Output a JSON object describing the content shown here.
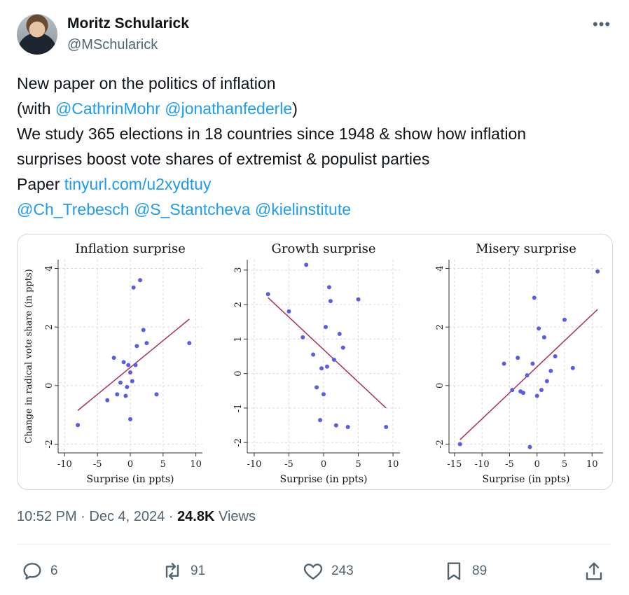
{
  "author": {
    "name": "Moritz Schularick",
    "handle": "@MSchularick"
  },
  "more_label": "•••",
  "tweet": {
    "line1": "New paper on the politics of inflation",
    "line2_pre": "(with ",
    "mention1": "@CathrinMohr",
    "mention2": "@jonathanfederle",
    "line2_post": ")",
    "line3": "We study 365 elections in 18 countries since 1948 & show how inflation",
    "line4": "surprises boost vote shares of extremist & populist parties",
    "line5_pre": "Paper ",
    "paper_link": "tinyurl.com/u2xydtuy",
    "mention3": "@Ch_Trebesch",
    "mention4": "@S_Stantcheva",
    "mention5": "@kielinstitute"
  },
  "chart_data": [
    {
      "type": "scatter",
      "title": "Inflation surprise",
      "xlabel": "Surprise (in ppts)",
      "ylabel": "Change in radical vote share (in ppts)",
      "xlim": [
        -11,
        11
      ],
      "ylim": [
        -2.3,
        4.3
      ],
      "xticks": [
        -10,
        -5,
        0,
        5,
        10
      ],
      "yticks": [
        -2,
        0,
        2,
        4
      ],
      "grid": true,
      "points": [
        [
          -8.0,
          -1.35
        ],
        [
          -3.5,
          -0.5
        ],
        [
          -2.5,
          0.95
        ],
        [
          -2.0,
          -0.3
        ],
        [
          -1.5,
          0.1
        ],
        [
          -1.0,
          0.8
        ],
        [
          -0.7,
          -0.35
        ],
        [
          -0.5,
          -0.05
        ],
        [
          -0.3,
          0.7
        ],
        [
          0.0,
          0.45
        ],
        [
          0.0,
          -1.15
        ],
        [
          0.3,
          0.15
        ],
        [
          0.5,
          3.35
        ],
        [
          0.8,
          0.7
        ],
        [
          1.0,
          1.35
        ],
        [
          1.5,
          3.6
        ],
        [
          2.0,
          1.9
        ],
        [
          2.5,
          1.45
        ],
        [
          4.0,
          -0.3
        ],
        [
          9.0,
          1.45
        ]
      ],
      "fit": [
        [
          -8.0,
          -0.85
        ],
        [
          9.0,
          2.27
        ]
      ]
    },
    {
      "type": "scatter",
      "title": "Growth surprise",
      "xlabel": "Surprise (in ppts)",
      "ylabel": "",
      "xlim": [
        -11,
        11
      ],
      "ylim": [
        -2.3,
        3.3
      ],
      "xticks": [
        -10,
        -5,
        0,
        5,
        10
      ],
      "yticks": [
        -2,
        -1,
        0,
        1,
        2,
        3
      ],
      "grid": true,
      "points": [
        [
          -8.0,
          2.3
        ],
        [
          -5.0,
          1.8
        ],
        [
          -3.0,
          1.05
        ],
        [
          -2.5,
          3.15
        ],
        [
          -1.5,
          0.55
        ],
        [
          -1.0,
          -0.4
        ],
        [
          -0.5,
          -1.35
        ],
        [
          -0.3,
          0.15
        ],
        [
          0.0,
          -0.6
        ],
        [
          0.3,
          1.35
        ],
        [
          0.5,
          0.2
        ],
        [
          0.8,
          2.5
        ],
        [
          1.0,
          2.1
        ],
        [
          1.5,
          0.4
        ],
        [
          1.8,
          -1.5
        ],
        [
          2.3,
          1.15
        ],
        [
          2.8,
          0.75
        ],
        [
          3.5,
          -1.55
        ],
        [
          5.0,
          2.15
        ],
        [
          9.0,
          -1.55
        ]
      ],
      "fit": [
        [
          -8.0,
          2.2
        ],
        [
          9.0,
          -1.0
        ]
      ]
    },
    {
      "type": "scatter",
      "title": "Misery surprise",
      "xlabel": "Surprise (in ppts)",
      "ylabel": "",
      "xlim": [
        -16,
        12
      ],
      "ylim": [
        -2.3,
        4.3
      ],
      "xticks": [
        -15,
        -10,
        -5,
        0,
        5,
        10
      ],
      "yticks": [
        -2,
        0,
        2,
        4
      ],
      "grid": true,
      "points": [
        [
          -14.0,
          -2.0
        ],
        [
          -6.0,
          0.75
        ],
        [
          -4.5,
          -0.15
        ],
        [
          -3.5,
          0.95
        ],
        [
          -3.0,
          -0.2
        ],
        [
          -2.5,
          -0.25
        ],
        [
          -1.8,
          0.35
        ],
        [
          -1.3,
          -2.1
        ],
        [
          -0.8,
          0.75
        ],
        [
          -0.5,
          3.0
        ],
        [
          0.0,
          -0.35
        ],
        [
          0.3,
          1.95
        ],
        [
          0.8,
          -0.15
        ],
        [
          1.3,
          1.65
        ],
        [
          1.8,
          0.15
        ],
        [
          2.5,
          0.5
        ],
        [
          3.3,
          1.0
        ],
        [
          5.0,
          2.25
        ],
        [
          6.5,
          0.6
        ],
        [
          11.0,
          3.9
        ]
      ],
      "fit": [
        [
          -14.0,
          -1.85
        ],
        [
          11.0,
          2.6
        ]
      ]
    }
  ],
  "meta": {
    "time": "10:52 PM",
    "date": "Dec 4, 2024",
    "views_count": "24.8K",
    "views_label": "Views",
    "sep": "·"
  },
  "actions": {
    "replies": "6",
    "reposts": "91",
    "likes": "243",
    "bookmarks": "89"
  },
  "icons": {
    "reply": "reply-icon",
    "repost": "repost-icon",
    "like": "heart-icon",
    "bookmark": "bookmark-icon",
    "share": "share-icon"
  },
  "colors": {
    "link": "#1d9bf0",
    "point": "#5b5ce6",
    "fit": "#a8305c",
    "grid": "#d9d9d9"
  }
}
